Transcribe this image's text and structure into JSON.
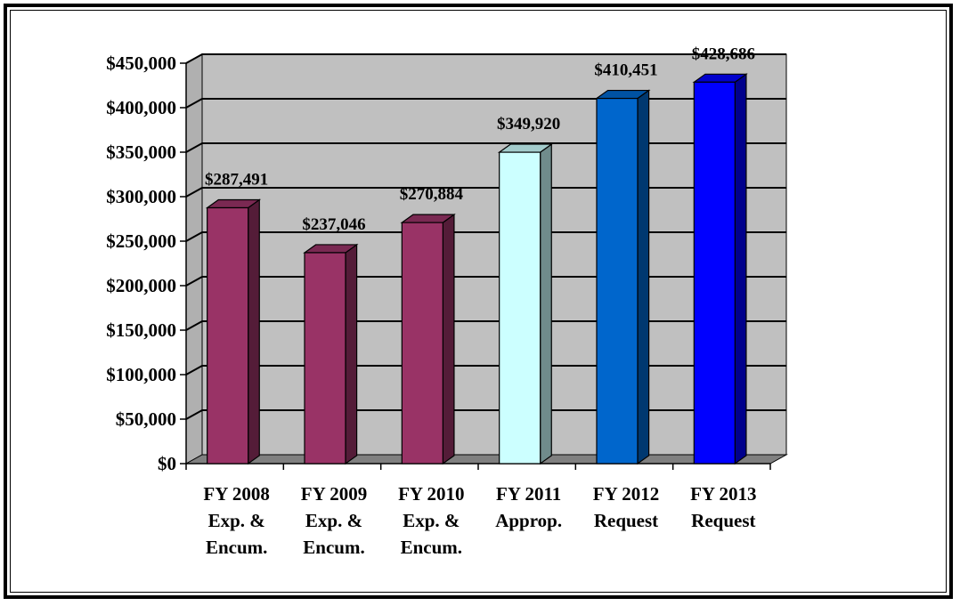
{
  "chart_data": {
    "type": "bar",
    "categories": [
      [
        "FY 2008",
        "Exp. &",
        "Encum."
      ],
      [
        "FY 2009",
        "Exp. &",
        "Encum."
      ],
      [
        "FY 2010",
        "Exp. &",
        "Encum."
      ],
      [
        "FY 2011",
        "Approp."
      ],
      [
        "FY 2012",
        "Request"
      ],
      [
        "FY 2013",
        "Request"
      ]
    ],
    "values": [
      287491,
      237046,
      270884,
      349920,
      410451,
      428686
    ],
    "data_labels": [
      "$287,491",
      "$237,046",
      "$270,884",
      "$349,920",
      "$410,451",
      "$428,686"
    ],
    "bar_colors": [
      "#993366",
      "#993366",
      "#993366",
      "#ccffff",
      "#0066cc",
      "#0000ff"
    ],
    "ylim": [
      0,
      450000
    ],
    "y_ticks": [
      0,
      50000,
      100000,
      150000,
      200000,
      250000,
      300000,
      350000,
      400000,
      450000
    ],
    "y_tick_labels": [
      "$0",
      "$50,000",
      "$100,000",
      "$150,000",
      "$200,000",
      "$250,000",
      "$300,000",
      "$350,000",
      "$400,000",
      "$450,000"
    ],
    "grid": true,
    "wall_color": "#c0c0c0",
    "floor_color": "#808080",
    "title": "",
    "xlabel": "",
    "ylabel": ""
  }
}
